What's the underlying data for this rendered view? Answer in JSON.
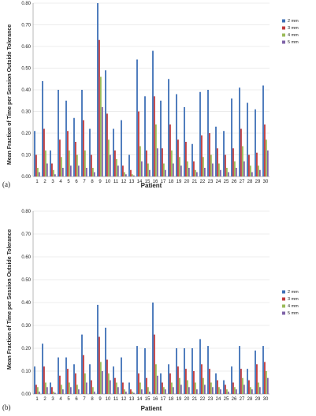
{
  "chart_data": [
    {
      "type": "bar",
      "panel_label": "(a)",
      "categories": [
        "1",
        "2",
        "3",
        "4",
        "5",
        "6",
        "7",
        "8",
        "9",
        "10",
        "11",
        "12",
        "13",
        "14",
        "15",
        "16",
        "17",
        "18",
        "19",
        "20",
        "21",
        "22",
        "23",
        "24",
        "25",
        "26",
        "27",
        "28",
        "29",
        "30"
      ],
      "xlabel": "Patient",
      "ylabel": "Mean Fraction of Time per Session Outside Tolerance",
      "ylim": [
        0,
        0.8
      ],
      "yticks": [
        "0.00",
        "0.10",
        "0.20",
        "0.30",
        "0.40",
        "0.50",
        "0.60",
        "0.70",
        "0.80"
      ],
      "legend_position": "right",
      "series": [
        {
          "name": "2 mm",
          "color": "#3d6fb6",
          "values": [
            0.21,
            0.44,
            0.12,
            0.4,
            0.35,
            0.27,
            0.4,
            0.22,
            0.8,
            0.49,
            0.22,
            0.26,
            0.1,
            0.54,
            0.37,
            0.58,
            0.35,
            0.45,
            0.38,
            0.32,
            0.15,
            0.39,
            0.4,
            0.23,
            0.21,
            0.36,
            0.41,
            0.34,
            0.31,
            0.42
          ]
        },
        {
          "name": "3 mm",
          "color": "#c0393b",
          "values": [
            0.1,
            0.22,
            0.06,
            0.17,
            0.21,
            0.16,
            0.26,
            0.1,
            0.63,
            0.29,
            0.12,
            0.05,
            0.03,
            0.3,
            0.12,
            0.37,
            0.13,
            0.24,
            0.17,
            0.16,
            0.07,
            0.19,
            0.2,
            0.13,
            0.1,
            0.13,
            0.22,
            0.1,
            0.11,
            0.24
          ]
        },
        {
          "name": "4 mm",
          "color": "#9bbb59",
          "values": [
            0.04,
            0.12,
            0.03,
            0.09,
            0.12,
            0.1,
            0.12,
            0.04,
            0.46,
            0.17,
            0.08,
            0.02,
            0.01,
            0.14,
            0.06,
            0.24,
            0.06,
            0.12,
            0.09,
            0.07,
            0.03,
            0.09,
            0.1,
            0.06,
            0.04,
            0.07,
            0.14,
            0.05,
            0.05,
            0.17
          ]
        },
        {
          "name": "5 mm",
          "color": "#7f63a8",
          "values": [
            0.02,
            0.06,
            0.01,
            0.04,
            0.05,
            0.05,
            0.04,
            0.02,
            0.32,
            0.1,
            0.05,
            0.01,
            0.005,
            0.07,
            0.03,
            0.13,
            0.03,
            0.06,
            0.05,
            0.04,
            0.02,
            0.04,
            0.06,
            0.03,
            0.02,
            0.04,
            0.07,
            0.02,
            0.03,
            0.12
          ]
        }
      ]
    },
    {
      "type": "bar",
      "panel_label": "(b)",
      "categories": [
        "1",
        "2",
        "3",
        "4",
        "5",
        "6",
        "7",
        "8",
        "9",
        "10",
        "11",
        "12",
        "13",
        "14",
        "15",
        "16",
        "17",
        "18",
        "19",
        "20",
        "21",
        "22",
        "23",
        "24",
        "25",
        "26",
        "27",
        "28",
        "29",
        "30"
      ],
      "xlabel": "Patient",
      "ylabel": "Mean Fraction of Time per Session Outside Tolerance",
      "ylim": [
        0,
        0.8
      ],
      "yticks": [
        "0.00",
        "0.10",
        "0.20",
        "0.30",
        "0.40",
        "0.50",
        "0.60",
        "0.70",
        "0.80"
      ],
      "legend_position": "right",
      "series": [
        {
          "name": "2 mm",
          "color": "#3d6fb6",
          "values": [
            0.12,
            0.22,
            0.05,
            0.16,
            0.16,
            0.13,
            0.26,
            0.13,
            0.39,
            0.29,
            0.12,
            0.16,
            0.05,
            0.21,
            0.2,
            0.4,
            0.09,
            0.13,
            0.2,
            0.2,
            0.2,
            0.24,
            0.21,
            0.09,
            0.06,
            0.12,
            0.21,
            0.11,
            0.19,
            0.21
          ]
        },
        {
          "name": "3 mm",
          "color": "#c0393b",
          "values": [
            0.04,
            0.12,
            0.03,
            0.08,
            0.11,
            0.09,
            0.17,
            0.06,
            0.25,
            0.15,
            0.07,
            0.05,
            0.02,
            0.09,
            0.07,
            0.26,
            0.05,
            0.09,
            0.12,
            0.11,
            0.1,
            0.13,
            0.11,
            0.06,
            0.04,
            0.05,
            0.11,
            0.06,
            0.13,
            0.14
          ]
        },
        {
          "name": "4 mm",
          "color": "#9bbb59",
          "values": [
            0.03,
            0.05,
            0.01,
            0.04,
            0.05,
            0.04,
            0.09,
            0.03,
            0.14,
            0.09,
            0.05,
            0.02,
            0.01,
            0.05,
            0.03,
            0.13,
            0.03,
            0.05,
            0.07,
            0.06,
            0.05,
            0.07,
            0.05,
            0.03,
            0.02,
            0.03,
            0.07,
            0.03,
            0.05,
            0.1
          ]
        },
        {
          "name": "5 mm",
          "color": "#7f63a8",
          "values": [
            0.01,
            0.03,
            0.005,
            0.02,
            0.03,
            0.02,
            0.05,
            0.01,
            0.1,
            0.06,
            0.03,
            0.01,
            0.005,
            0.02,
            0.01,
            0.08,
            0.02,
            0.03,
            0.04,
            0.03,
            0.02,
            0.04,
            0.03,
            0.02,
            0.01,
            0.02,
            0.04,
            0.02,
            0.03,
            0.07
          ]
        }
      ]
    }
  ]
}
